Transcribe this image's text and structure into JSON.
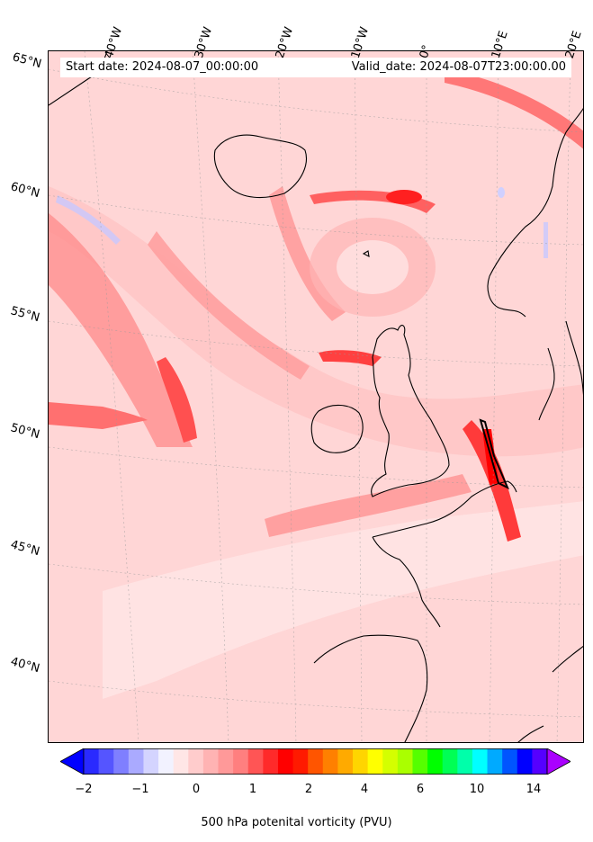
{
  "header": {
    "start_date": "Start date: 2024-08-07_00:00:00",
    "valid_date": "Valid_date: 2024-08-07T23:00:00.00"
  },
  "map": {
    "longitude_labels": [
      "40°W",
      "30°W",
      "20°W",
      "10°W",
      "0°",
      "10°E",
      "20°E"
    ],
    "latitude_labels": [
      "65°N",
      "60°N",
      "55°N",
      "50°N",
      "45°N",
      "40°N"
    ],
    "field": "500 hPa potential vorticity",
    "background_color": "#ffd6d6",
    "coastline_color": "#000000"
  },
  "colorbar": {
    "label": "500 hPa potenital vorticity (PVU)",
    "tick_labels": [
      "−2",
      "−1",
      "0",
      "1",
      "2",
      "4",
      "6",
      "10",
      "14"
    ],
    "extend": "both",
    "colors": [
      "#0000ff",
      "#2a2aff",
      "#5555ff",
      "#7f7fff",
      "#aaaaff",
      "#d4d4ff",
      "#f2f2ff",
      "#ffe6e6",
      "#ffcccc",
      "#ffb3b3",
      "#ff9999",
      "#ff7f7f",
      "#ff5555",
      "#ff2a2a",
      "#ff0000",
      "#ff1a00",
      "#ff5500",
      "#ff8000",
      "#ffaa00",
      "#ffd500",
      "#ffff00",
      "#d4ff00",
      "#aaff00",
      "#55ff00",
      "#00ff00",
      "#00ff55",
      "#00ffaa",
      "#00ffff",
      "#00aaff",
      "#0055ff",
      "#0000ff",
      "#5500ff",
      "#aa00ff"
    ]
  }
}
